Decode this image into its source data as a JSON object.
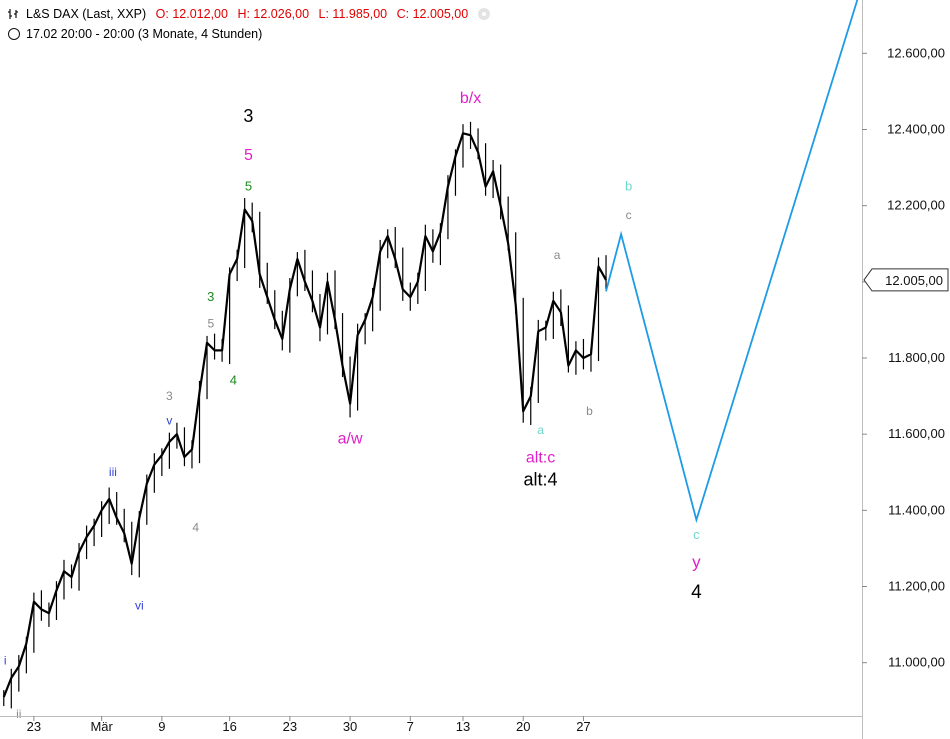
{
  "header": {
    "symbol": "L&S DAX (Last, XXP)",
    "open": "O: 12.012,00",
    "high": "H: 12.026,00",
    "low": "L: 11.985,00",
    "close": "C: 12.005,00",
    "interval": "17.02 20:00 - 20:00 (3 Monate, 4 Stunden)"
  },
  "colors": {
    "price": "#000000",
    "projection": "#1e9be6",
    "magenta": "#e020c8",
    "green": "#1e8a1e",
    "gray": "#8a8a8a",
    "blue": "#2f3fd8",
    "cyan": "#6fd9c9",
    "ohlc": "#e00000"
  },
  "chart_data": {
    "type": "line",
    "y_axis": {
      "position": "right",
      "ticks": [
        11000,
        11200,
        11400,
        11600,
        11800,
        12000,
        12200,
        12400,
        12600
      ],
      "tick_labels": [
        "11.000,00",
        "11.200,00",
        "11.400,00",
        "11.600,00",
        "11.800,00",
        "12.000,00",
        "12.200,00",
        "12.400,00",
        "12.600,00"
      ],
      "last_price_label": "12.005,00",
      "last_price": 12005,
      "range": [
        10860,
        12740
      ]
    },
    "x_axis": {
      "ticks": [
        {
          "label": "23",
          "i": 4
        },
        {
          "label": "Mär",
          "i": 13
        },
        {
          "label": "9",
          "i": 21
        },
        {
          "label": "16",
          "i": 30
        },
        {
          "label": "23",
          "i": 38
        },
        {
          "label": "30",
          "i": 46
        },
        {
          "label": "7",
          "i": 54
        },
        {
          "label": "13",
          "i": 61
        },
        {
          "label": "20",
          "i": 69
        },
        {
          "label": "27",
          "i": 77
        }
      ],
      "range": [
        -0.5,
        114
      ]
    },
    "price_series": {
      "name": "L&S DAX",
      "points": [
        [
          0,
          10910
        ],
        [
          1,
          10960
        ],
        [
          2,
          10990
        ],
        [
          3,
          11050
        ],
        [
          4,
          11160
        ],
        [
          5,
          11140
        ],
        [
          6,
          11130
        ],
        [
          7,
          11190
        ],
        [
          8,
          11240
        ],
        [
          9,
          11225
        ],
        [
          10,
          11290
        ],
        [
          11,
          11330
        ],
        [
          12,
          11360
        ],
        [
          13,
          11400
        ],
        [
          14,
          11430
        ],
        [
          15,
          11380
        ],
        [
          16,
          11340
        ],
        [
          17,
          11260
        ],
        [
          18,
          11380
        ],
        [
          19,
          11470
        ],
        [
          20,
          11520
        ],
        [
          21,
          11545
        ],
        [
          22,
          11580
        ],
        [
          23,
          11600
        ],
        [
          24,
          11540
        ],
        [
          25,
          11560
        ],
        [
          26,
          11710
        ],
        [
          27,
          11840
        ],
        [
          28,
          11820
        ],
        [
          29,
          11820
        ],
        [
          30,
          12020
        ],
        [
          31,
          12060
        ],
        [
          32,
          12190
        ],
        [
          33,
          12160
        ],
        [
          34,
          12020
        ],
        [
          35,
          11960
        ],
        [
          36,
          11900
        ],
        [
          37,
          11850
        ],
        [
          38,
          11980
        ],
        [
          39,
          12060
        ],
        [
          40,
          12000
        ],
        [
          41,
          11950
        ],
        [
          42,
          11880
        ],
        [
          43,
          12000
        ],
        [
          44,
          11900
        ],
        [
          45,
          11780
        ],
        [
          46,
          11680
        ],
        [
          47,
          11860
        ],
        [
          48,
          11900
        ],
        [
          49,
          11960
        ],
        [
          50,
          12080
        ],
        [
          51,
          12120
        ],
        [
          52,
          12060
        ],
        [
          53,
          11980
        ],
        [
          54,
          11960
        ],
        [
          55,
          12000
        ],
        [
          56,
          12120
        ],
        [
          57,
          12080
        ],
        [
          58,
          12130
        ],
        [
          59,
          12250
        ],
        [
          60,
          12330
        ],
        [
          61,
          12390
        ],
        [
          62,
          12385
        ],
        [
          63,
          12340
        ],
        [
          64,
          12250
        ],
        [
          65,
          12290
        ],
        [
          66,
          12200
        ],
        [
          67,
          12100
        ],
        [
          68,
          11940
        ],
        [
          69,
          11660
        ],
        [
          70,
          11700
        ],
        [
          71,
          11870
        ],
        [
          72,
          11880
        ],
        [
          73,
          11950
        ],
        [
          74,
          11920
        ],
        [
          75,
          11780
        ],
        [
          76,
          11820
        ],
        [
          77,
          11800
        ],
        [
          78,
          11810
        ],
        [
          79,
          12040
        ],
        [
          80,
          12005
        ]
      ]
    },
    "projection_series": {
      "name": "projection",
      "points": [
        [
          80,
          11975
        ],
        [
          82,
          12125
        ],
        [
          92,
          11375
        ],
        [
          114,
          12780
        ]
      ]
    },
    "wave_labels": [
      {
        "text": "3",
        "i": 32.5,
        "v": 12420,
        "color": "#000000",
        "size": 18
      },
      {
        "text": "5",
        "i": 32.5,
        "v": 12320,
        "color": "#e020c8",
        "size": 16
      },
      {
        "text": "5",
        "i": 32.5,
        "v": 12240,
        "color": "#1e8a1e",
        "size": 13
      },
      {
        "text": "3",
        "i": 27.5,
        "v": 11950,
        "color": "#1e8a1e",
        "size": 13
      },
      {
        "text": "5",
        "i": 27.5,
        "v": 11880,
        "color": "#8a8a8a",
        "size": 12
      },
      {
        "text": "4",
        "i": 30.5,
        "v": 11730,
        "color": "#1e8a1e",
        "size": 13
      },
      {
        "text": "3",
        "i": 22.0,
        "v": 11690,
        "color": "#8a8a8a",
        "size": 12
      },
      {
        "text": "v",
        "i": 22.0,
        "v": 11625,
        "color": "#2f3fd8",
        "size": 12
      },
      {
        "text": "iii",
        "i": 14.5,
        "v": 11490,
        "color": "#2f3fd8",
        "size": 12
      },
      {
        "text": "4",
        "i": 25.5,
        "v": 11345,
        "color": "#8a8a8a",
        "size": 12
      },
      {
        "text": "vi",
        "i": 18.0,
        "v": 11140,
        "color": "#2f3fd8",
        "size": 12
      },
      {
        "text": "i",
        "i": 0.2,
        "v": 10995,
        "color": "#2f3fd8",
        "size": 12
      },
      {
        "text": "ii",
        "i": 2.0,
        "v": 10855,
        "color": "#8a8a8a",
        "size": 12
      },
      {
        "text": "a/w",
        "i": 46.0,
        "v": 11575,
        "color": "#e020c8",
        "size": 16
      },
      {
        "text": "b/x",
        "i": 62.0,
        "v": 12470,
        "color": "#e020c8",
        "size": 16
      },
      {
        "text": "a",
        "i": 73.5,
        "v": 12060,
        "color": "#8a8a8a",
        "size": 12
      },
      {
        "text": "a",
        "i": 71.3,
        "v": 11600,
        "color": "#6fd9c9",
        "size": 12
      },
      {
        "text": "alt:c",
        "i": 71.3,
        "v": 11525,
        "color": "#e020c8",
        "size": 16
      },
      {
        "text": "alt:4",
        "i": 71.3,
        "v": 11465,
        "color": "#000000",
        "size": 18
      },
      {
        "text": "b",
        "i": 77.8,
        "v": 11650,
        "color": "#8a8a8a",
        "size": 12
      },
      {
        "text": "b",
        "i": 83.0,
        "v": 12240,
        "color": "#6fd9c9",
        "size": 13
      },
      {
        "text": "c",
        "i": 83.0,
        "v": 12165,
        "color": "#8a8a8a",
        "size": 12
      },
      {
        "text": "c",
        "i": 92.0,
        "v": 11325,
        "color": "#6fd9c9",
        "size": 13
      },
      {
        "text": "y",
        "i": 92.0,
        "v": 11250,
        "color": "#e020c8",
        "size": 17
      },
      {
        "text": "4",
        "i": 92.0,
        "v": 11170,
        "color": "#000000",
        "size": 19
      }
    ]
  }
}
